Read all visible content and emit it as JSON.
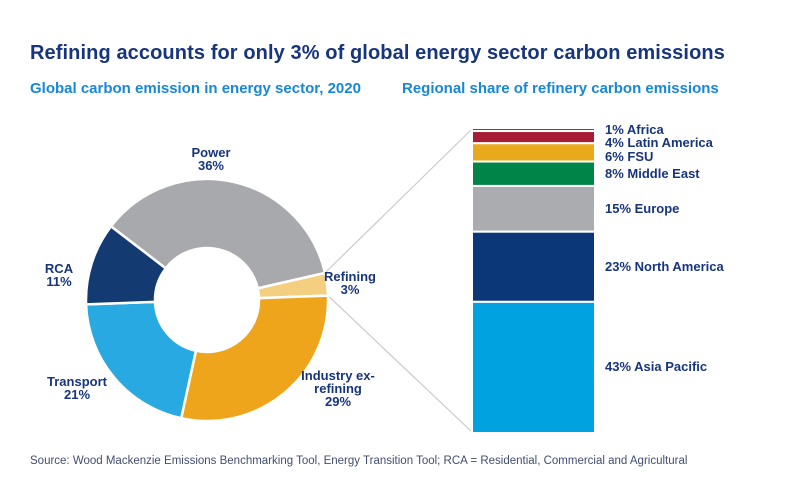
{
  "header": {
    "title": "Refining accounts for only 3% of global energy sector carbon emissions",
    "subtitle_left": "Global carbon emission in energy sector, 2020",
    "subtitle_right": "Regional share of refinery carbon emissions"
  },
  "footer": {
    "source": "Source: Wood Mackenzie Emissions Benchmarking Tool, Energy Transition Tool; RCA = Residential, Commercial and Agricultural"
  },
  "colors": {
    "title_navy": "#17357C",
    "subtitle_blue": "#1787D8",
    "label_navy": "#17357C",
    "source_gray_blue": "#424E6E",
    "callout_line": "#C9CACB",
    "slice_gap_white": "#FFFFFF"
  },
  "chart_data": [
    {
      "type": "pie",
      "donut": true,
      "title": "Global carbon emission in energy sector, 2020",
      "unit": "%",
      "start_angle_deg": -52.5,
      "slices": [
        {
          "name": "Power",
          "value": 36,
          "pct": "36%",
          "color": "#A8A9AD"
        },
        {
          "name": "Refining",
          "value": 3,
          "pct": "3%",
          "color": "#F5CF80"
        },
        {
          "name": "Industry ex-refining",
          "name_lines": [
            "Industry ex-",
            "refining"
          ],
          "value": 29,
          "pct": "29%",
          "color": "#EFA51B"
        },
        {
          "name": "Transport",
          "value": 21,
          "pct": "21%",
          "color": "#29A9E1"
        },
        {
          "name": "RCA",
          "value": 11,
          "pct": "11%",
          "color": "#133B72"
        }
      ]
    },
    {
      "type": "bar",
      "stacked": true,
      "title": "Regional share of refinery carbon emissions",
      "unit": "%",
      "total": 100,
      "segments": [
        {
          "region": "Africa",
          "value": 1,
          "label": "1% Africa",
          "color": "#265E7D"
        },
        {
          "region": "Latin America",
          "value": 4,
          "label": "4% Latin America",
          "color": "#A51E35"
        },
        {
          "region": "FSU",
          "value": 6,
          "label": "6% FSU",
          "color": "#E9A91C"
        },
        {
          "region": "Middle East",
          "value": 8,
          "label": "8% Middle East",
          "color": "#008548"
        },
        {
          "region": "Europe",
          "value": 15,
          "label": "15% Europe",
          "color": "#ABACB0"
        },
        {
          "region": "North America",
          "value": 23,
          "label": "23% North America",
          "color": "#0B3778"
        },
        {
          "region": "Asia Pacific",
          "value": 43,
          "label": "43% Asia Pacific",
          "color": "#00A3E0"
        }
      ]
    }
  ]
}
